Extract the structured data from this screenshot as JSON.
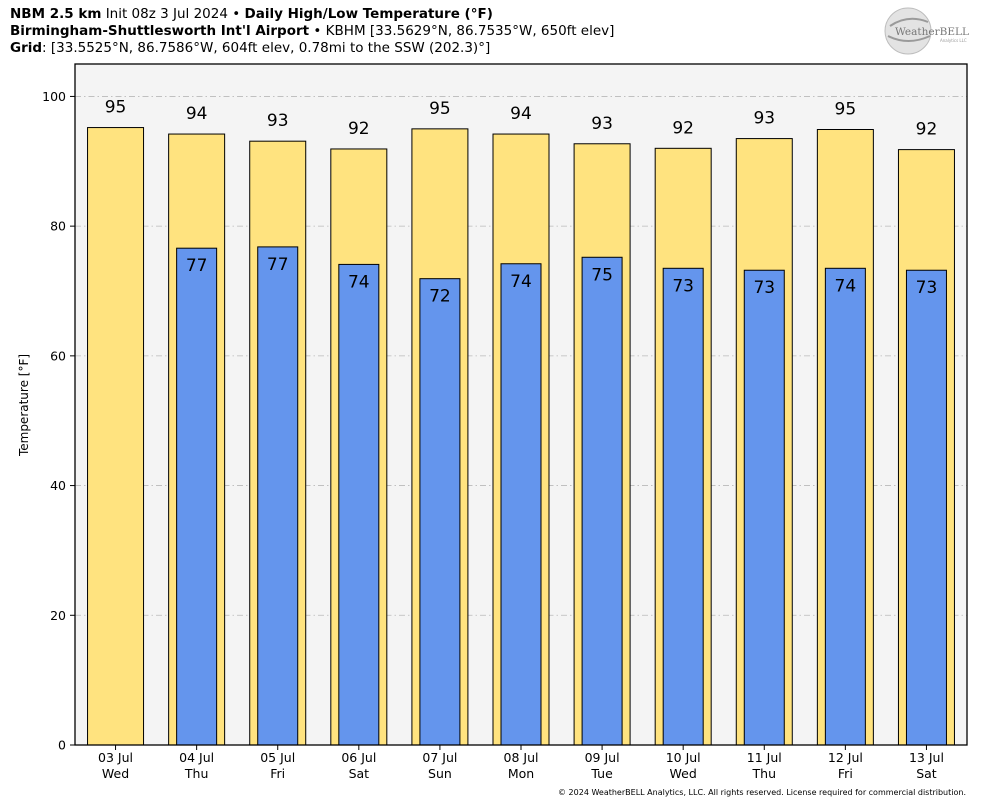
{
  "header": {
    "line1": {
      "model": "NBM 2.5 km",
      "init": "Init 08z 3 Jul 2024",
      "sep": "•",
      "product": "Daily High/Low Temperature (°F)"
    },
    "line2": {
      "station": "Birmingham-Shuttlesworth Int'l Airport",
      "sep": "•",
      "details": "KBHM [33.5629°N, 86.7535°W, 650ft elev]"
    },
    "line3": {
      "label": "Grid",
      "details": ": [33.5525°N, 86.7586°W, 604ft elev, 0.78mi to the SSW (202.3)°]"
    }
  },
  "logo": {
    "text": "WeatherBELL",
    "subtext": "Analytics LLC"
  },
  "footer": {
    "text": "© 2024 WeatherBELL Analytics, LLC. All rights reserved. License required for commercial distribution."
  },
  "colors": {
    "high": "#ffe37f",
    "low": "#6495ed",
    "plot_bg": "#f4f4f4",
    "grid": "#b9b9b9"
  },
  "chart_data": {
    "type": "bar",
    "title": "Daily High/Low Temperature (°F)",
    "xlabel": "",
    "ylabel": "Temperature [°F]",
    "ylim": [
      0,
      105
    ],
    "yticks": [
      0,
      20,
      40,
      60,
      80,
      100
    ],
    "grid": true,
    "categories": [
      {
        "date": "03 Jul",
        "day": "Wed"
      },
      {
        "date": "04 Jul",
        "day": "Thu"
      },
      {
        "date": "05 Jul",
        "day": "Fri"
      },
      {
        "date": "06 Jul",
        "day": "Sat"
      },
      {
        "date": "07 Jul",
        "day": "Sun"
      },
      {
        "date": "08 Jul",
        "day": "Mon"
      },
      {
        "date": "09 Jul",
        "day": "Tue"
      },
      {
        "date": "10 Jul",
        "day": "Wed"
      },
      {
        "date": "11 Jul",
        "day": "Thu"
      },
      {
        "date": "12 Jul",
        "day": "Fri"
      },
      {
        "date": "13 Jul",
        "day": "Sat"
      }
    ],
    "series": [
      {
        "key": "high",
        "values": [
          95.2,
          94.2,
          93.1,
          91.9,
          95.0,
          94.2,
          92.7,
          92.0,
          93.5,
          94.9,
          91.8
        ],
        "labels": [
          "95",
          "94",
          "93",
          "92",
          "95",
          "94",
          "93",
          "92",
          "93",
          "95",
          "92"
        ]
      },
      {
        "key": "low",
        "values": [
          null,
          76.6,
          76.8,
          74.1,
          71.9,
          74.2,
          75.2,
          73.5,
          73.2,
          73.5,
          73.2
        ],
        "labels": [
          null,
          "77",
          "77",
          "74",
          "72",
          "74",
          "75",
          "73",
          "73",
          "74",
          "73"
        ]
      }
    ]
  }
}
